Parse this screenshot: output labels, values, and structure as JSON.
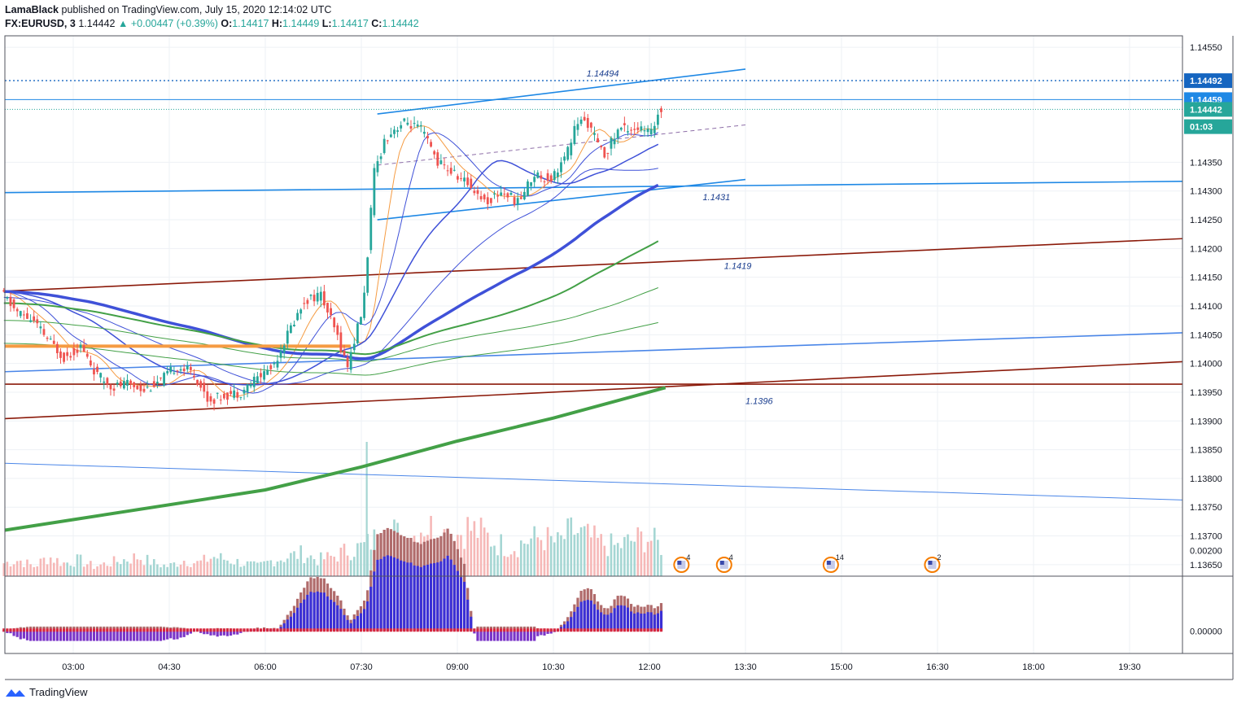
{
  "header": {
    "publisher": "LamaBlack",
    "published_text": "published on TradingView.com, July 15, 2020 12:14:02 UTC",
    "symbol": "FX:EURUSD, 3",
    "last": "1.14442",
    "change": "▲ +0.00447 (+0.39%)",
    "o_label": "O:",
    "o_val": "1.14417",
    "h_label": "H:",
    "h_val": "1.14449",
    "l_label": "L:",
    "l_val": "1.14417",
    "c_label": "C:",
    "c_val": "1.14442"
  },
  "footer": {
    "brand": "TradingView"
  },
  "colors": {
    "up": "#26a69a",
    "down": "#ef5350",
    "blue_line": "#1e88e5",
    "brown_line": "#8b1a0a",
    "ma_green": "#43a047",
    "ma_blue": "#3f51d8",
    "ma_orange": "#f59b42"
  },
  "chart_data": {
    "type": "line",
    "title": "",
    "price_axis": {
      "range": [
        1.1363,
        1.1457
      ],
      "ticks": [
        "1.14550",
        "1.14350",
        "1.14300",
        "1.14250",
        "1.14200",
        "1.14150",
        "1.14100",
        "1.14050",
        "1.14000",
        "1.13950",
        "1.13900",
        "1.13850",
        "1.13800",
        "1.13750",
        "1.13700",
        "1.13650"
      ],
      "tags": [
        {
          "label": "1.14492",
          "price": 1.14492,
          "color": "#1565c0"
        },
        {
          "label": "1.14459",
          "price": 1.14459,
          "color": "#1e88e5"
        },
        {
          "label": "1.14442",
          "price": 1.14442,
          "color": "#26a69a"
        },
        {
          "label": "01:03",
          "price": 1.14412,
          "color": "#26a69a"
        }
      ]
    },
    "time_axis": {
      "labels": [
        "03:00",
        "04:30",
        "06:00",
        "07:30",
        "09:00",
        "10:30",
        "12:00",
        "13:30",
        "15:00",
        "16:30",
        "18:00",
        "19:30"
      ]
    },
    "annotations": [
      "1.14494",
      "1.1431",
      "1.1419",
      "1.1396"
    ],
    "events": [
      "4",
      "4",
      "14",
      "2"
    ],
    "price_path": [
      [
        "01:55",
        1.14125
      ],
      [
        "02:10",
        1.1409
      ],
      [
        "02:25",
        1.14075
      ],
      [
        "02:40",
        1.1404
      ],
      [
        "02:55",
        1.1401
      ],
      [
        "03:10",
        1.1403
      ],
      [
        "03:25",
        1.1398
      ],
      [
        "03:40",
        1.1396
      ],
      [
        "03:55",
        1.13965
      ],
      [
        "04:10",
        1.13955
      ],
      [
        "04:25",
        1.1397
      ],
      [
        "04:40",
        1.13995
      ],
      [
        "04:55",
        1.13985
      ],
      [
        "05:10",
        1.13935
      ],
      [
        "05:25",
        1.13945
      ],
      [
        "05:40",
        1.1395
      ],
      [
        "05:55",
        1.13975
      ],
      [
        "06:10",
        1.13995
      ],
      [
        "06:25",
        1.14055
      ],
      [
        "06:40",
        1.1411
      ],
      [
        "06:55",
        1.1412
      ],
      [
        "07:10",
        1.1405
      ],
      [
        "07:20",
        1.13995
      ],
      [
        "07:35",
        1.141
      ],
      [
        "07:45",
        1.1433
      ],
      [
        "07:55",
        1.1439
      ],
      [
        "08:05",
        1.1441
      ],
      [
        "08:15",
        1.1442
      ],
      [
        "08:30",
        1.14405
      ],
      [
        "08:45",
        1.1435
      ],
      [
        "09:00",
        1.1433
      ],
      [
        "09:15",
        1.1431
      ],
      [
        "09:30",
        1.1428
      ],
      [
        "09:45",
        1.143
      ],
      [
        "10:00",
        1.1428
      ],
      [
        "10:15",
        1.1433
      ],
      [
        "10:30",
        1.1432
      ],
      [
        "10:45",
        1.1436
      ],
      [
        "10:55",
        1.1442
      ],
      [
        "11:05",
        1.1442
      ],
      [
        "11:20",
        1.1436
      ],
      [
        "11:35",
        1.1441
      ],
      [
        "11:50",
        1.1441
      ],
      [
        "12:05",
        1.144
      ],
      [
        "12:12",
        1.14442
      ]
    ],
    "trend_lines": [
      {
        "name": "upper channel",
        "color": "#1e88e5",
        "from": [
          "07:45",
          1.14434
        ],
        "to": [
          "13:30",
          1.14512
        ]
      },
      {
        "name": "lower channel",
        "color": "#1e88e5",
        "from": [
          "07:45",
          1.1425
        ],
        "to": [
          "13:30",
          1.1432
        ]
      },
      {
        "name": "long blue support",
        "color": "#1e88e5",
        "from": [
          "01:45",
          1.14297
        ],
        "to": [
          "20:30",
          1.14317
        ]
      },
      {
        "name": "upper brown",
        "color": "#8b1a0a",
        "from": [
          "01:45",
          1.14125
        ],
        "to": [
          "20:30",
          1.14218
        ]
      },
      {
        "name": "lower brown",
        "color": "#8b1a0a",
        "from": [
          "01:45",
          1.13903
        ],
        "to": [
          "20:30",
          1.14004
        ]
      },
      {
        "name": "blue trend",
        "color": "#4a86e8",
        "from": [
          "01:45",
          1.13985
        ],
        "to": [
          "20:30",
          1.14054
        ]
      },
      {
        "name": "horizontal brown",
        "color": "#8b1a0a",
        "from": [
          "01:45",
          1.13964
        ],
        "to": [
          "20:30",
          1.13964
        ]
      },
      {
        "name": "falling thin blue",
        "color": "#4a86e8",
        "from": [
          "01:45",
          1.13827
        ],
        "to": [
          "20:30",
          1.13762
        ]
      }
    ],
    "volume_path": [
      4,
      5,
      3,
      6,
      4,
      5,
      3,
      4,
      5,
      6,
      4,
      3,
      5,
      4,
      6,
      5,
      4,
      3,
      5,
      6,
      7,
      5,
      6,
      8,
      9,
      12,
      14,
      10,
      16,
      14,
      12,
      15,
      13,
      10,
      9,
      11,
      12,
      10,
      14,
      12,
      10,
      9,
      11,
      12,
      9
    ],
    "oscillator": {
      "ticks": [
        "0.00200",
        "0.00000"
      ],
      "range": [
        -0.0004,
        0.0012
      ]
    },
    "grid": true,
    "legend": "none"
  }
}
